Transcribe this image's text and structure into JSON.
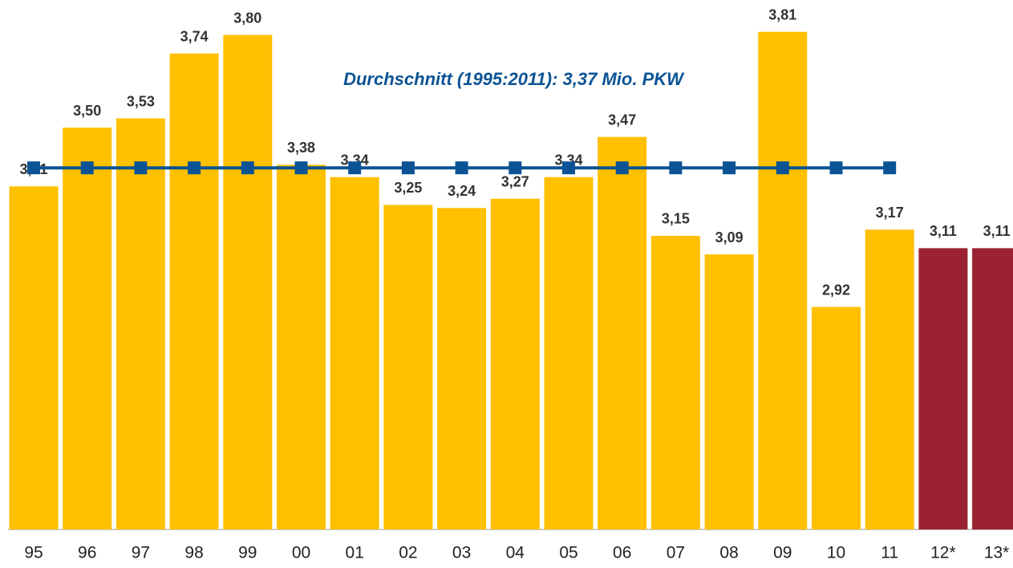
{
  "chart_data": {
    "type": "bar",
    "categories": [
      "95",
      "96",
      "97",
      "98",
      "99",
      "00",
      "01",
      "02",
      "03",
      "04",
      "05",
      "06",
      "07",
      "08",
      "09",
      "10",
      "11",
      "12*",
      "13*"
    ],
    "values": [
      3.31,
      3.5,
      3.53,
      3.74,
      3.8,
      3.38,
      3.34,
      3.25,
      3.24,
      3.27,
      3.34,
      3.47,
      3.15,
      3.09,
      3.81,
      2.92,
      3.17,
      3.11,
      3.11
    ],
    "value_labels": [
      "3,31",
      "3,50",
      "3,53",
      "3,74",
      "3,80",
      "3,38",
      "3,34",
      "3,25",
      "3,24",
      "3,27",
      "3,34",
      "3,47",
      "3,15",
      "3,09",
      "3,81",
      "2,92",
      "3,17",
      "3,11",
      "3,11"
    ],
    "colors": [
      "#FFC000",
      "#FFC000",
      "#FFC000",
      "#FFC000",
      "#FFC000",
      "#FFC000",
      "#FFC000",
      "#FFC000",
      "#FFC000",
      "#FFC000",
      "#FFC000",
      "#FFC000",
      "#FFC000",
      "#FFC000",
      "#FFC000",
      "#FFC000",
      "#FFC000",
      "#9B2230",
      "#9B2230"
    ],
    "average": {
      "label": "Durchschnitt (1995:2011): 3,37 Mio. PKW",
      "color": "#0B5394",
      "values": [
        3.37,
        3.37,
        3.37,
        3.37,
        3.37,
        3.37,
        3.37,
        3.37,
        3.37,
        3.37,
        3.37,
        3.37,
        3.37,
        3.37,
        3.37,
        3.37,
        3.37,
        null,
        null
      ]
    },
    "ylim": [
      2.2,
      3.9
    ]
  }
}
